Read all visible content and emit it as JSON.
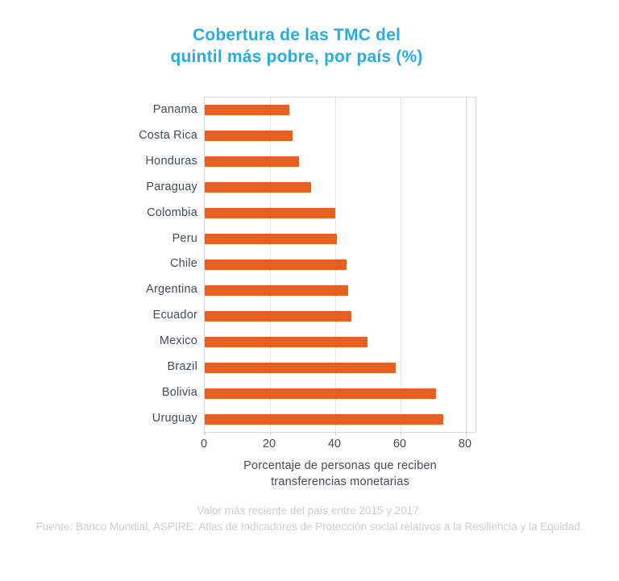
{
  "title": {
    "line1": "Cobertura de las TMC del",
    "line2": "quintil más pobre, por país (%)"
  },
  "chart_data": {
    "type": "bar",
    "orientation": "horizontal",
    "title": "Cobertura de las TMC del quintil más pobre, por país (%)",
    "categories": [
      "Panama",
      "Costa Rica",
      "Honduras",
      "Paraguay",
      "Colombia",
      "Peru",
      "Chile",
      "Argentina",
      "Ecuador",
      "Mexico",
      "Brazil",
      "Bolivia",
      "Uruguay"
    ],
    "values": [
      26,
      27,
      29,
      32.5,
      40,
      40.5,
      43.5,
      44,
      45,
      50,
      58.5,
      71,
      73
    ],
    "xlabel": "Porcentaje de personas que reciben transferencias monetarias",
    "xlabel_lines": [
      "Porcentaje de personas que reciben",
      "transferencias monetarias"
    ],
    "ylabel": "",
    "x_ticks": [
      0,
      20,
      40,
      60,
      80
    ],
    "xlim": [
      0,
      83
    ],
    "grid": true,
    "legend": false,
    "bar_color": "#E8601C",
    "title_color": "#29ABE2",
    "text_color": "#414B5B",
    "grid_color": "#E2E2E2"
  },
  "footer": {
    "line1": "Valor más reciente del país entre 2015 y 2017.",
    "line2": "Fuente: Banco Mundial, ASPIRE: Atlas de Indicadores de Protección social relativos a la Resiliencia y la Equidad."
  }
}
